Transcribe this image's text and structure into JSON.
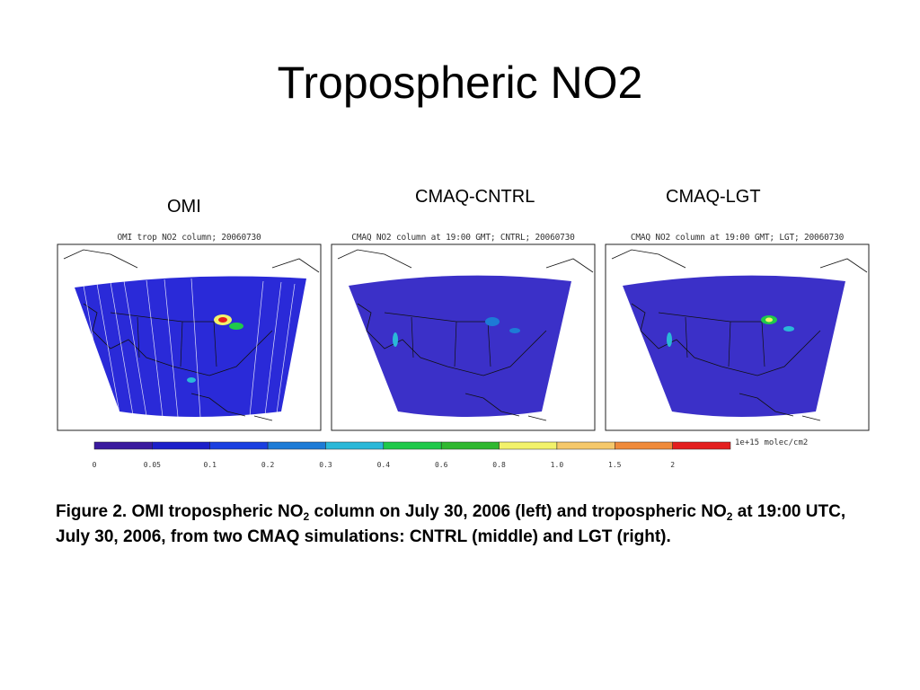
{
  "slide": {
    "title": "Tropospheric NO2"
  },
  "panels": [
    {
      "label": "OMI",
      "map_title": "OMI trop NO2 column; 20060730"
    },
    {
      "label": "CMAQ-CNTRL",
      "map_title": "CMAQ NO2 column at 19:00 GMT; CNTRL; 20060730"
    },
    {
      "label": "CMAQ-LGT",
      "map_title": "CMAQ NO2 column at 19:00 GMT; LGT; 20060730"
    }
  ],
  "colorbar": {
    "unit": "1e+15 molec/cm2",
    "ticks": [
      "0",
      "0.05",
      "0.1",
      "0.2",
      "0.3",
      "0.4",
      "0.6",
      "0.8",
      "1.0",
      "1.5",
      "2"
    ],
    "colors": [
      "#3a1a9e",
      "#1c1fc9",
      "#1a3fe0",
      "#1d7bd6",
      "#2ab8d8",
      "#1fc94a",
      "#2fb82f",
      "#f2f26a",
      "#f5c86a",
      "#ef8a3a",
      "#e41e1e"
    ]
  },
  "caption": {
    "part1": "Figure 2. OMI tropospheric NO",
    "sub1": "2",
    "part2": " column on July 30, 2006 (left) and tropospheric NO",
    "sub2": "2",
    "part3": " at 19:00 UTC, July 30, 2006, from two CMAQ simulations: CNTRL (middle) and LGT (right)."
  }
}
